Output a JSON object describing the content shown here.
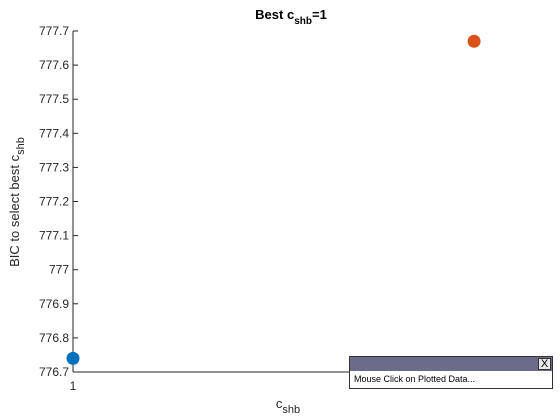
{
  "chart_data": {
    "type": "scatter",
    "title": "Best c",
    "title_subscript": "shb",
    "title_suffix": "=1",
    "xlabel": "c",
    "xlabel_subscript": "shb",
    "ylabel": "BIC to select best c",
    "ylabel_subscript": "shb",
    "xlim": [
      1,
      2.3
    ],
    "ylim": [
      776.7,
      777.7
    ],
    "x_ticks": [
      1
    ],
    "x_tick_labels": [
      "1"
    ],
    "y_ticks": [
      776.7,
      776.8,
      776.9,
      777,
      777.1,
      777.2,
      777.3,
      777.4,
      777.5,
      777.6,
      777.7
    ],
    "y_tick_labels": [
      "776.7",
      "776.8",
      "776.9",
      "777",
      "777.1",
      "777.2",
      "777.3",
      "777.4",
      "777.5",
      "777.6",
      "777.7"
    ],
    "grid": false,
    "points": [
      {
        "x": 1,
        "y": 776.74,
        "color": "#0072BD"
      },
      {
        "x": 2.1,
        "y": 777.67,
        "color": "#D95319"
      }
    ]
  },
  "popup": {
    "close_label": "X",
    "message": "Mouse Click on Plotted Data..."
  }
}
